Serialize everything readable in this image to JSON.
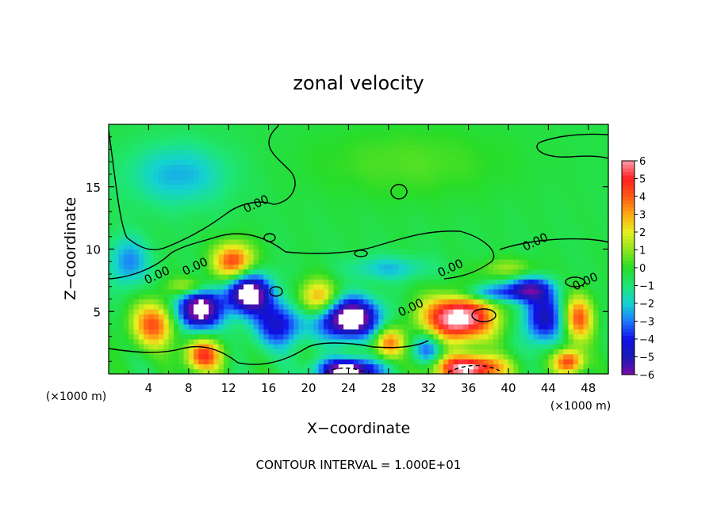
{
  "chart_data": {
    "type": "heatmap",
    "title": "zonal velocity",
    "xlabel": "X−coordinate",
    "ylabel": "Z−coordinate",
    "x_unit": "(×1000 m)",
    "y_unit": "(×1000 m)",
    "xlim": [
      0,
      50
    ],
    "ylim": [
      0,
      20
    ],
    "x_ticks": [
      4,
      8,
      12,
      16,
      20,
      24,
      28,
      32,
      36,
      40,
      44,
      48
    ],
    "y_ticks": [
      5,
      10,
      15
    ],
    "footer": "CONTOUR INTERVAL = 1.000E+01",
    "contour_labels": [
      "0.00",
      "0.00",
      "0.00",
      "0.00",
      "0.00",
      "0.00",
      "0.00"
    ],
    "colorbar": {
      "ticks": [
        "6",
        "5",
        "4",
        "3",
        "2",
        "1",
        "0",
        "−1",
        "−2",
        "−3",
        "−4",
        "−5",
        "−6"
      ],
      "range": [
        -6,
        6
      ],
      "colors": [
        {
          "v": -6,
          "c": "#7a0aa8"
        },
        {
          "v": -5,
          "c": "#1a1ab4"
        },
        {
          "v": -4,
          "c": "#1010e6"
        },
        {
          "v": -3,
          "c": "#1e78ff"
        },
        {
          "v": -2,
          "c": "#14d2d2"
        },
        {
          "v": -1,
          "c": "#1ee678"
        },
        {
          "v": 0,
          "c": "#28dc28"
        },
        {
          "v": 1,
          "c": "#8ce61e"
        },
        {
          "v": 2,
          "c": "#e6f01e"
        },
        {
          "v": 3,
          "c": "#ffaa14"
        },
        {
          "v": 4,
          "c": "#ff5a14"
        },
        {
          "v": 5,
          "c": "#ff1e1e"
        },
        {
          "v": 6,
          "c": "#ff9aa8"
        }
      ]
    },
    "features": [
      {
        "x": 4.5,
        "z": 4.0,
        "v": 4.5,
        "sx": 2.2,
        "sz": 1.8
      },
      {
        "x": 9.0,
        "z": 5.2,
        "v": -7.0,
        "sx": 2.2,
        "sz": 1.6
      },
      {
        "x": 9.5,
        "z": 1.5,
        "v": 5.0,
        "sx": 1.8,
        "sz": 1.3
      },
      {
        "x": 14.0,
        "z": 6.5,
        "v": -7.0,
        "sx": 2.2,
        "sz": 1.6
      },
      {
        "x": 12.5,
        "z": 9.0,
        "v": 5.0,
        "sx": 2.0,
        "sz": 1.5
      },
      {
        "x": 17.0,
        "z": 4.0,
        "v": -4.0,
        "sx": 2.5,
        "sz": 1.8
      },
      {
        "x": 21.0,
        "z": 6.0,
        "v": 4.0,
        "sx": 2.0,
        "sz": 1.5
      },
      {
        "x": 24.0,
        "z": 4.5,
        "v": -7.5,
        "sx": 3.0,
        "sz": 1.6
      },
      {
        "x": 28.0,
        "z": 2.5,
        "v": 4.0,
        "sx": 1.5,
        "sz": 1.2
      },
      {
        "x": 24.0,
        "z": 0.3,
        "v": -7.0,
        "sx": 3.0,
        "sz": 0.9
      },
      {
        "x": 35.0,
        "z": 4.5,
        "v": 7.5,
        "sx": 3.5,
        "sz": 1.8
      },
      {
        "x": 36.0,
        "z": 0.5,
        "v": 7.0,
        "sx": 3.5,
        "sz": 1.0
      },
      {
        "x": 32.0,
        "z": 2.0,
        "v": -3.0,
        "sx": 1.5,
        "sz": 1.4
      },
      {
        "x": 43.5,
        "z": 4.5,
        "v": -4.5,
        "sx": 2.0,
        "sz": 2.0
      },
      {
        "x": 47.0,
        "z": 4.5,
        "v": 4.5,
        "sx": 1.5,
        "sz": 1.8
      },
      {
        "x": 42.0,
        "z": 6.8,
        "v": -4.5,
        "sx": 2.2,
        "sz": 1.0
      },
      {
        "x": 46.0,
        "z": 1.0,
        "v": 5.0,
        "sx": 1.5,
        "sz": 1.0
      },
      {
        "x": 28.0,
        "z": 8.5,
        "v": -1.8,
        "sx": 4.0,
        "sz": 1.0
      },
      {
        "x": 7.0,
        "z": 16.0,
        "v": -2.0,
        "sx": 5.0,
        "sz": 2.5
      },
      {
        "x": 30.0,
        "z": 17.0,
        "v": 0.8,
        "sx": 10.0,
        "sz": 3.0
      },
      {
        "x": 2.0,
        "z": 9.0,
        "v": -2.5,
        "sx": 2.0,
        "sz": 2.0
      },
      {
        "x": 40.0,
        "z": 8.5,
        "v": 1.5,
        "sx": 3.0,
        "sz": 0.8
      },
      {
        "x": 8.0,
        "z": 7.0,
        "v": 2.5,
        "sx": 2.0,
        "sz": 0.8
      },
      {
        "x": 38.0,
        "z": 6.5,
        "v": -3.0,
        "sx": 3.0,
        "sz": 0.7
      }
    ]
  }
}
